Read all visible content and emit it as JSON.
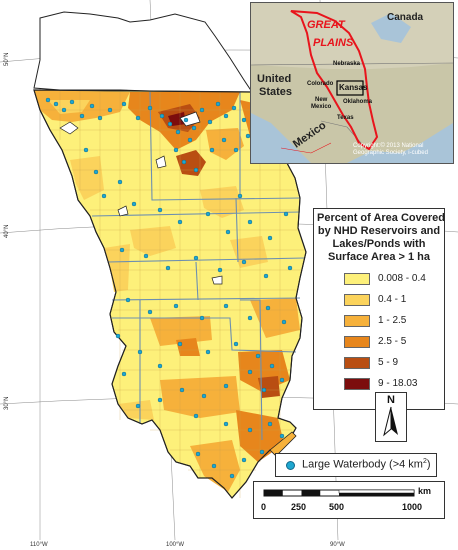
{
  "map": {
    "lat_labels": [
      "50°N",
      "40°N",
      "30°N"
    ],
    "lon_labels": [
      "110°W",
      "100°W",
      "90°W"
    ]
  },
  "inset": {
    "labels": {
      "canada": "Canada",
      "great": "GREAT",
      "plains": "PLAINS",
      "us1": "United",
      "us2": "States",
      "nebraska": "Nebraska",
      "colorado": "Colorado",
      "kansas": "Kansas",
      "oklahoma": "Oklahoma",
      "newmexico1": "New",
      "newmexico2": "Mexico",
      "texas": "Texas",
      "mexico": "Mexico",
      "copyright1": "Copyright:© 2013 National",
      "copyright2": "Geographic Society, i-cubed"
    },
    "colors": {
      "boundary": "#e8141c",
      "land": "#c9c6a8",
      "water": "#a9c4d8"
    }
  },
  "legend": {
    "title_lines": [
      "Percent of Area Covered",
      "by NHD Reservoirs and",
      "Lakes/Ponds with",
      "Surface Area > 1 ha"
    ],
    "classes": [
      {
        "label": "0.008 - 0.4",
        "color": "#fdf07a"
      },
      {
        "label": "0.4 - 1",
        "color": "#fbd35c"
      },
      {
        "label": "1 - 2.5",
        "color": "#f6b13b"
      },
      {
        "label": "2.5 - 5",
        "color": "#e7861c"
      },
      {
        "label": "5 - 9",
        "color": "#b94e12"
      },
      {
        "label": "9 - 18.03",
        "color": "#7c0d0d"
      }
    ]
  },
  "north_arrow": {
    "label": "N"
  },
  "waterbody": {
    "label": "Large Waterbody (>4 km",
    "sup": "2",
    "end": ")",
    "color": "#1ea7d0"
  },
  "scale_bar": {
    "unit": "km",
    "ticks": [
      "0",
      "250",
      "500",
      "1000"
    ]
  }
}
